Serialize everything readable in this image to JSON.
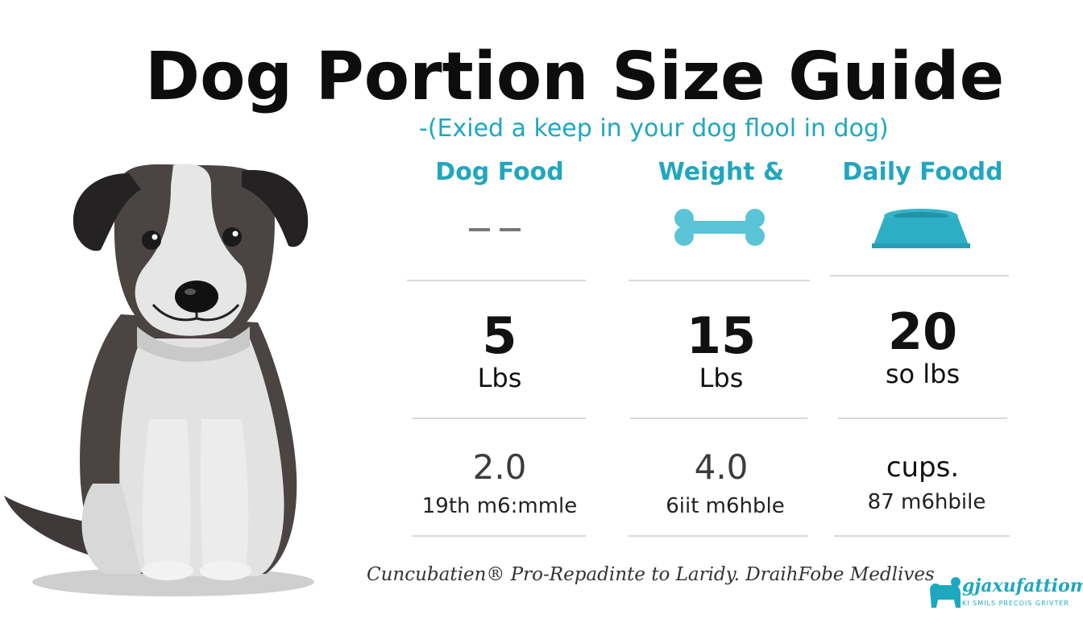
{
  "title": "Dog Portion Size Guide",
  "subtitle": "-(Exied a keep in your dog flool in dog)",
  "columns": [
    {
      "header": "Dog Food",
      "icon": "dash-icon",
      "weight": "5",
      "weight_unit": "Lbs",
      "amount": "2.0",
      "note": "19th m6:mmle"
    },
    {
      "header": "Weight &",
      "icon": "bone-icon",
      "weight": "15",
      "weight_unit": "Lbs",
      "amount": "4.0",
      "note": "6iit m6hble"
    },
    {
      "header": "Daily Foodd",
      "icon": "bowl-icon",
      "weight": "20",
      "weight_unit": "so lbs",
      "amount": "cups.",
      "note": "87 m6hbile"
    }
  ],
  "footer": "Cuncubatien® Pro-Repadinte to Laridy. DraihFobe Medlives",
  "brand": {
    "name": "gjaxufattiom",
    "tagline": "KI SMILS PRECOIS GRIVTER"
  },
  "colors": {
    "accent": "#22a6be",
    "dog_dark": "#4a4543",
    "dog_light": "#dcdcdc"
  }
}
